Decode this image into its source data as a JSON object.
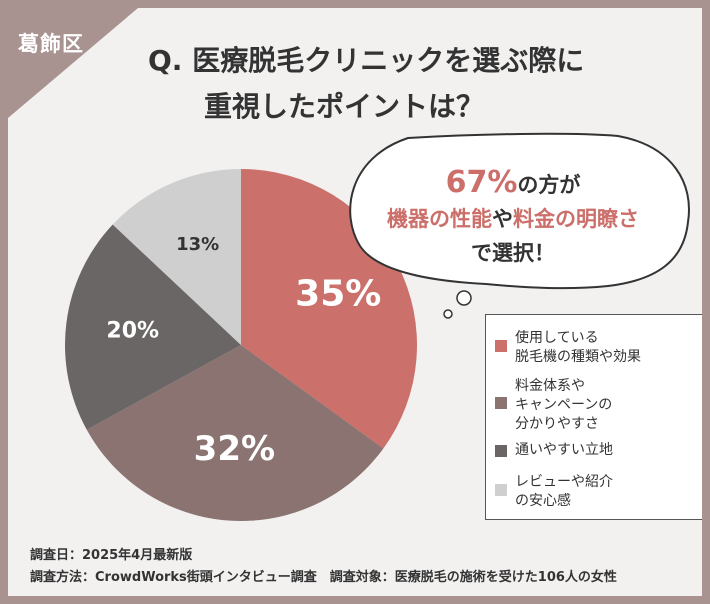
{
  "header": {
    "region": "葛飾区",
    "title_line1": "Q. 医療脱毛クリニックを選ぶ際に",
    "title_line2": "重視したポイントは？"
  },
  "callout": {
    "line1_pct": "67%",
    "line1_rest": "の方が",
    "line2_a": "機器の性能",
    "line2_b": "や",
    "line2_c": "料金の明瞭さ",
    "line3": "で選択！"
  },
  "chart_data": {
    "type": "pie",
    "title": "",
    "slices": [
      {
        "label": "使用している\n脱毛機の種類や効果",
        "value": 35,
        "display": "35%",
        "color": "#cc706b"
      },
      {
        "label": "料金体系や\nキャンペーンの\n分かりやすさ",
        "value": 32,
        "display": "32%",
        "color": "#8a7370"
      },
      {
        "label": "通いやすい立地",
        "value": 20,
        "display": "20%",
        "color": "#6a6665"
      },
      {
        "label": "レビューや紹介\nの安心感",
        "value": 13,
        "display": "13%",
        "color": "#cfcfcf"
      }
    ],
    "legend_position": "right"
  },
  "footer": {
    "date": "調査日：2025年4月最新版",
    "method": "調査方法：CrowdWorks街頭インタビュー調査　調査対象：医療脱毛の施術を受けた106人の女性"
  }
}
